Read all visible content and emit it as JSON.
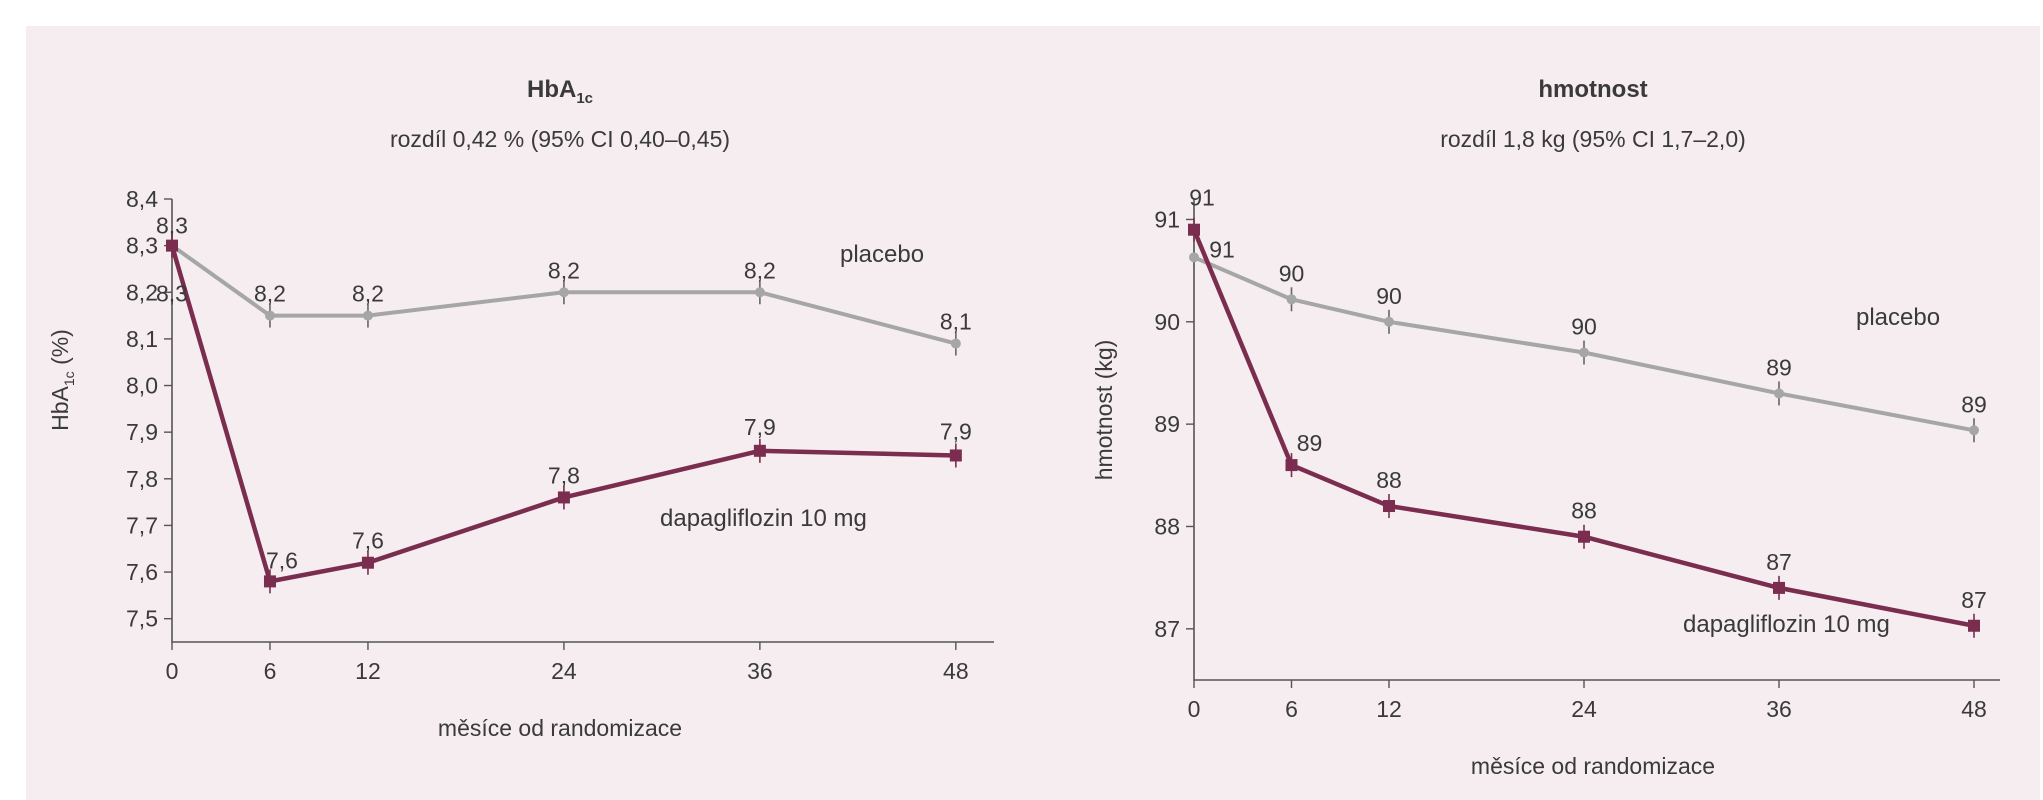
{
  "colors": {
    "background": "#f5edf0",
    "placebo": "#a6a6a6",
    "dapagliflozin": "#7b2d4f",
    "text": "#3a3a3a"
  },
  "chart_data": [
    {
      "type": "line",
      "title_main": "HbA",
      "title_sub": "1c",
      "subtitle": "rozdíl 0,42 % (95% CI 0,40–0,45)",
      "ylabel_main": "HbA",
      "ylabel_sub": "1c",
      "ylabel_unit": " (%)",
      "xlabel": "měsíce od randomizace",
      "x": [
        0,
        6,
        12,
        24,
        36,
        48
      ],
      "xticks": [
        "0",
        "6",
        "12",
        "24",
        "36",
        "48"
      ],
      "yticks": [
        "7,5",
        "7,6",
        "7,7",
        "7,8",
        "7,9",
        "8,0",
        "8,1",
        "8,2",
        "8,3",
        "8,4"
      ],
      "ylim": [
        7.45,
        8.4
      ],
      "series": [
        {
          "name": "placebo",
          "values": [
            8.3,
            8.15,
            8.15,
            8.2,
            8.2,
            8.09
          ],
          "labels": [
            "8,3",
            "8,2",
            "8,2",
            "8,2",
            "8,2",
            "8,1"
          ]
        },
        {
          "name": "dapagliflozin 10 mg",
          "values": [
            8.3,
            7.58,
            7.62,
            7.76,
            7.86,
            7.85
          ],
          "labels": [
            "8,3",
            "7,6",
            "7,6",
            "7,8",
            "7,9",
            "7,9"
          ]
        }
      ]
    },
    {
      "type": "line",
      "title_main": "hmotnost",
      "title_sub": "",
      "subtitle": "rozdíl 1,8 kg (95% CI 1,7–2,0)",
      "ylabel_main": "hmotnost (kg)",
      "ylabel_sub": "",
      "ylabel_unit": "",
      "xlabel": "měsíce od randomizace",
      "x": [
        0,
        6,
        12,
        24,
        36,
        48
      ],
      "xticks": [
        "0",
        "6",
        "12",
        "24",
        "36",
        "48"
      ],
      "yticks": [
        "87",
        "88",
        "89",
        "90",
        "91"
      ],
      "ylim": [
        86.5,
        91.2
      ],
      "series": [
        {
          "name": "placebo",
          "values": [
            90.63,
            90.22,
            90.0,
            89.7,
            89.3,
            88.94
          ],
          "labels": [
            "91",
            "90",
            "90",
            "90",
            "89",
            "89"
          ]
        },
        {
          "name": "dapagliflozin 10 mg",
          "values": [
            90.9,
            88.6,
            88.2,
            87.9,
            87.4,
            87.03
          ],
          "labels": [
            "91",
            "89",
            "88",
            "88",
            "87",
            "87"
          ]
        }
      ]
    }
  ]
}
